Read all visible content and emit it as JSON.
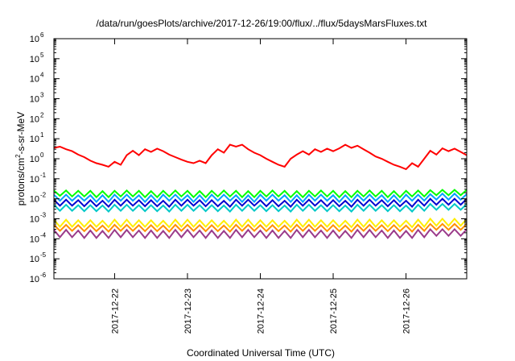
{
  "chart_data": {
    "type": "line",
    "title": "/data/run/goesPlots/archive/2017-12-26/19:00/flux/../flux/5daysMarsFluxes.txt",
    "xlabel": "Coordinated Universal Time (UTC)",
    "ylabel": {
      "prefix": "protons/cm",
      "sup": "2",
      "suffix": "-s-sr-MeV"
    },
    "y_scale": "log",
    "ylim": [
      1e-06,
      1000000.0
    ],
    "y_ticks": [
      {
        "base": "10",
        "exp": "-6"
      },
      {
        "base": "10",
        "exp": "-5"
      },
      {
        "base": "10",
        "exp": "-4"
      },
      {
        "base": "10",
        "exp": "-3"
      },
      {
        "base": "10",
        "exp": "-2"
      },
      {
        "base": "10",
        "exp": "-1"
      },
      {
        "base": "10",
        "exp": "0"
      },
      {
        "base": "10",
        "exp": "1"
      },
      {
        "base": "10",
        "exp": "2"
      },
      {
        "base": "10",
        "exp": "3"
      },
      {
        "base": "10",
        "exp": "4"
      },
      {
        "base": "10",
        "exp": "5"
      },
      {
        "base": "10",
        "exp": "6"
      }
    ],
    "xlim": [
      "2017-12-21 04:00",
      "2017-12-26 20:00"
    ],
    "x_ticks": [
      "2017-12-22",
      "2017-12-23",
      "2017-12-24",
      "2017-12-25",
      "2017-12-26"
    ],
    "grid": false,
    "legend": "none",
    "x": [
      "2017-12-21 04:00",
      "2017-12-21 06:00",
      "2017-12-21 08:00",
      "2017-12-21 10:00",
      "2017-12-21 12:00",
      "2017-12-21 14:00",
      "2017-12-21 16:00",
      "2017-12-21 18:00",
      "2017-12-21 20:00",
      "2017-12-21 22:00",
      "2017-12-22 00:00",
      "2017-12-22 02:00",
      "2017-12-22 04:00",
      "2017-12-22 06:00",
      "2017-12-22 08:00",
      "2017-12-22 10:00",
      "2017-12-22 12:00",
      "2017-12-22 14:00",
      "2017-12-22 16:00",
      "2017-12-22 18:00",
      "2017-12-22 20:00",
      "2017-12-22 22:00",
      "2017-12-23 00:00",
      "2017-12-23 02:00",
      "2017-12-23 04:00",
      "2017-12-23 06:00",
      "2017-12-23 08:00",
      "2017-12-23 10:00",
      "2017-12-23 12:00",
      "2017-12-23 14:00",
      "2017-12-23 16:00",
      "2017-12-23 18:00",
      "2017-12-23 20:00",
      "2017-12-23 22:00",
      "2017-12-24 00:00",
      "2017-12-24 02:00",
      "2017-12-24 04:00",
      "2017-12-24 06:00",
      "2017-12-24 08:00",
      "2017-12-24 10:00",
      "2017-12-24 12:00",
      "2017-12-24 14:00",
      "2017-12-24 16:00",
      "2017-12-24 18:00",
      "2017-12-24 20:00",
      "2017-12-24 22:00",
      "2017-12-25 00:00",
      "2017-12-25 02:00",
      "2017-12-25 04:00",
      "2017-12-25 06:00",
      "2017-12-25 08:00",
      "2017-12-25 10:00",
      "2017-12-25 12:00",
      "2017-12-25 14:00",
      "2017-12-25 16:00",
      "2017-12-25 18:00",
      "2017-12-25 20:00",
      "2017-12-25 22:00",
      "2017-12-26 00:00",
      "2017-12-26 02:00",
      "2017-12-26 04:00",
      "2017-12-26 06:00",
      "2017-12-26 08:00",
      "2017-12-26 10:00",
      "2017-12-26 12:00",
      "2017-12-26 14:00",
      "2017-12-26 16:00",
      "2017-12-26 18:00",
      "2017-12-26 20:00"
    ],
    "series": [
      {
        "color": "#ff0000",
        "values": [
          3.5,
          4,
          3,
          2.4,
          1.6,
          1.2,
          0.8,
          0.6,
          0.5,
          0.4,
          0.7,
          0.5,
          1.5,
          2.5,
          1.5,
          3,
          2.2,
          3.2,
          2.4,
          1.6,
          1.2,
          0.9,
          0.7,
          0.6,
          0.8,
          0.6,
          1.5,
          3,
          2,
          5,
          4,
          5,
          3,
          2,
          1.5,
          1,
          0.7,
          0.5,
          0.4,
          1,
          1.6,
          2.4,
          1.6,
          3,
          2.2,
          3.2,
          2.4,
          3.3,
          5,
          3.5,
          4.5,
          3,
          2,
          1.3,
          1,
          0.7,
          0.5,
          0.4,
          0.3,
          0.6,
          0.4,
          1,
          2.5,
          1.6,
          3.3,
          2.4,
          3.2,
          2.2,
          1.5
        ]
      },
      {
        "color": "#00ff00",
        "values": [
          0.026,
          0.014,
          0.026,
          0.013,
          0.025,
          0.013,
          0.025,
          0.012,
          0.024,
          0.012,
          0.025,
          0.013,
          0.026,
          0.013,
          0.025,
          0.012,
          0.024,
          0.012,
          0.025,
          0.013,
          0.026,
          0.013,
          0.025,
          0.012,
          0.024,
          0.012,
          0.025,
          0.013,
          0.026,
          0.013,
          0.025,
          0.012,
          0.024,
          0.012,
          0.025,
          0.013,
          0.026,
          0.013,
          0.025,
          0.012,
          0.024,
          0.012,
          0.025,
          0.013,
          0.026,
          0.013,
          0.025,
          0.012,
          0.024,
          0.012,
          0.025,
          0.013,
          0.026,
          0.013,
          0.025,
          0.012,
          0.024,
          0.012,
          0.025,
          0.013,
          0.026,
          0.013,
          0.027,
          0.015,
          0.028,
          0.015,
          0.028,
          0.015,
          0.028
        ]
      },
      {
        "color": "#00a0ff",
        "values": [
          0.016,
          0.008,
          0.016,
          0.008,
          0.015,
          0.008,
          0.015,
          0.007,
          0.015,
          0.007,
          0.016,
          0.008,
          0.016,
          0.008,
          0.015,
          0.007,
          0.015,
          0.007,
          0.016,
          0.008,
          0.016,
          0.008,
          0.015,
          0.007,
          0.015,
          0.007,
          0.016,
          0.008,
          0.016,
          0.008,
          0.015,
          0.007,
          0.015,
          0.007,
          0.016,
          0.008,
          0.016,
          0.008,
          0.015,
          0.007,
          0.015,
          0.007,
          0.016,
          0.008,
          0.016,
          0.008,
          0.015,
          0.007,
          0.015,
          0.007,
          0.016,
          0.008,
          0.016,
          0.008,
          0.015,
          0.007,
          0.015,
          0.007,
          0.016,
          0.008,
          0.016,
          0.008,
          0.017,
          0.009,
          0.018,
          0.009,
          0.018,
          0.009,
          0.017
        ]
      },
      {
        "color": "#0000d0",
        "values": [
          0.009,
          0.0045,
          0.009,
          0.0045,
          0.0085,
          0.0042,
          0.0085,
          0.0042,
          0.008,
          0.004,
          0.009,
          0.0045,
          0.009,
          0.0045,
          0.0085,
          0.0042,
          0.0085,
          0.0042,
          0.008,
          0.004,
          0.009,
          0.0045,
          0.009,
          0.0045,
          0.0085,
          0.0042,
          0.0085,
          0.0042,
          0.008,
          0.004,
          0.009,
          0.0045,
          0.009,
          0.0045,
          0.0085,
          0.0042,
          0.0085,
          0.0042,
          0.008,
          0.004,
          0.009,
          0.0045,
          0.009,
          0.0045,
          0.0085,
          0.0042,
          0.0085,
          0.0042,
          0.008,
          0.004,
          0.009,
          0.0045,
          0.009,
          0.0045,
          0.0085,
          0.0042,
          0.0085,
          0.0042,
          0.008,
          0.004,
          0.009,
          0.0045,
          0.01,
          0.005,
          0.01,
          0.005,
          0.01,
          0.005,
          0.01
        ]
      },
      {
        "color": "#00c8c8",
        "values": [
          0.005,
          0.0025,
          0.005,
          0.0025,
          0.0048,
          0.0024,
          0.0048,
          0.0024,
          0.0046,
          0.0023,
          0.005,
          0.0025,
          0.005,
          0.0025,
          0.0048,
          0.0024,
          0.0048,
          0.0024,
          0.0046,
          0.0023,
          0.005,
          0.0025,
          0.005,
          0.0025,
          0.0048,
          0.0024,
          0.0048,
          0.0024,
          0.0046,
          0.0023,
          0.005,
          0.0025,
          0.005,
          0.0025,
          0.0048,
          0.0024,
          0.0048,
          0.0024,
          0.0046,
          0.0023,
          0.005,
          0.0025,
          0.005,
          0.0025,
          0.0048,
          0.0024,
          0.0048,
          0.0024,
          0.0046,
          0.0023,
          0.005,
          0.0025,
          0.005,
          0.0025,
          0.0048,
          0.0024,
          0.0048,
          0.0024,
          0.0046,
          0.0023,
          0.005,
          0.0025,
          0.0055,
          0.0028,
          0.0055,
          0.0028,
          0.0055,
          0.0028,
          0.0055
        ]
      },
      {
        "color": "#ffee00",
        "values": [
          0.0009,
          0.0004,
          0.0009,
          0.0004,
          0.00085,
          0.0004,
          0.00085,
          0.0004,
          0.0008,
          0.00038,
          0.0009,
          0.0004,
          0.0009,
          0.0004,
          0.00085,
          0.0004,
          0.00085,
          0.0004,
          0.0008,
          0.00038,
          0.0009,
          0.0004,
          0.0009,
          0.0004,
          0.00085,
          0.0004,
          0.00085,
          0.0004,
          0.0008,
          0.00038,
          0.0009,
          0.0004,
          0.0009,
          0.0004,
          0.00085,
          0.0004,
          0.00085,
          0.0004,
          0.0008,
          0.00038,
          0.0009,
          0.0004,
          0.0009,
          0.0004,
          0.00085,
          0.0004,
          0.00085,
          0.0004,
          0.0008,
          0.00038,
          0.0009,
          0.0004,
          0.0009,
          0.0004,
          0.00085,
          0.0004,
          0.00085,
          0.0004,
          0.0008,
          0.00038,
          0.0009,
          0.0004,
          0.001,
          0.00045,
          0.001,
          0.00045,
          0.001,
          0.00045,
          0.001
        ]
      },
      {
        "color": "#ff9000",
        "values": [
          0.0005,
          0.00025,
          0.0005,
          0.00025,
          0.00048,
          0.00024,
          0.00048,
          0.00024,
          0.00046,
          0.00023,
          0.0005,
          0.00025,
          0.0005,
          0.00025,
          0.00048,
          0.00024,
          0.00048,
          0.00024,
          0.00046,
          0.00023,
          0.0005,
          0.00025,
          0.0005,
          0.00025,
          0.00048,
          0.00024,
          0.00048,
          0.00024,
          0.00046,
          0.00023,
          0.0005,
          0.00025,
          0.0005,
          0.00025,
          0.00048,
          0.00024,
          0.00048,
          0.00024,
          0.00046,
          0.00023,
          0.0005,
          0.00025,
          0.0005,
          0.00025,
          0.00048,
          0.00024,
          0.00048,
          0.00024,
          0.00046,
          0.00023,
          0.0005,
          0.00025,
          0.0005,
          0.00025,
          0.00048,
          0.00024,
          0.00048,
          0.00024,
          0.00046,
          0.00023,
          0.0005,
          0.00025,
          0.00055,
          0.00028,
          0.00055,
          0.00028,
          0.00055,
          0.00028,
          0.00055
        ]
      },
      {
        "color": "#9b3b8a",
        "values": [
          0.00028,
          0.00012,
          0.00028,
          0.00012,
          0.00026,
          0.00011,
          0.00026,
          0.00011,
          0.00025,
          0.00011,
          0.00028,
          0.00012,
          0.00028,
          0.00012,
          0.00026,
          0.00011,
          0.00026,
          0.00011,
          0.00025,
          0.00011,
          0.00028,
          0.00012,
          0.00028,
          0.00012,
          0.00026,
          0.00011,
          0.00026,
          0.00011,
          0.00025,
          0.00011,
          0.00028,
          0.00012,
          0.00028,
          0.00012,
          0.00026,
          0.00011,
          0.00026,
          0.00011,
          0.00025,
          0.00011,
          0.00028,
          0.00012,
          0.00028,
          0.00012,
          0.00026,
          0.00011,
          0.00026,
          0.00011,
          0.00025,
          0.00011,
          0.00028,
          0.00012,
          0.00028,
          0.00012,
          0.00026,
          0.00011,
          0.00026,
          0.00011,
          0.00025,
          0.00011,
          0.00028,
          0.00012,
          0.0003,
          0.00014,
          0.0003,
          0.00014,
          0.0003,
          0.00014,
          0.0003
        ]
      }
    ]
  }
}
